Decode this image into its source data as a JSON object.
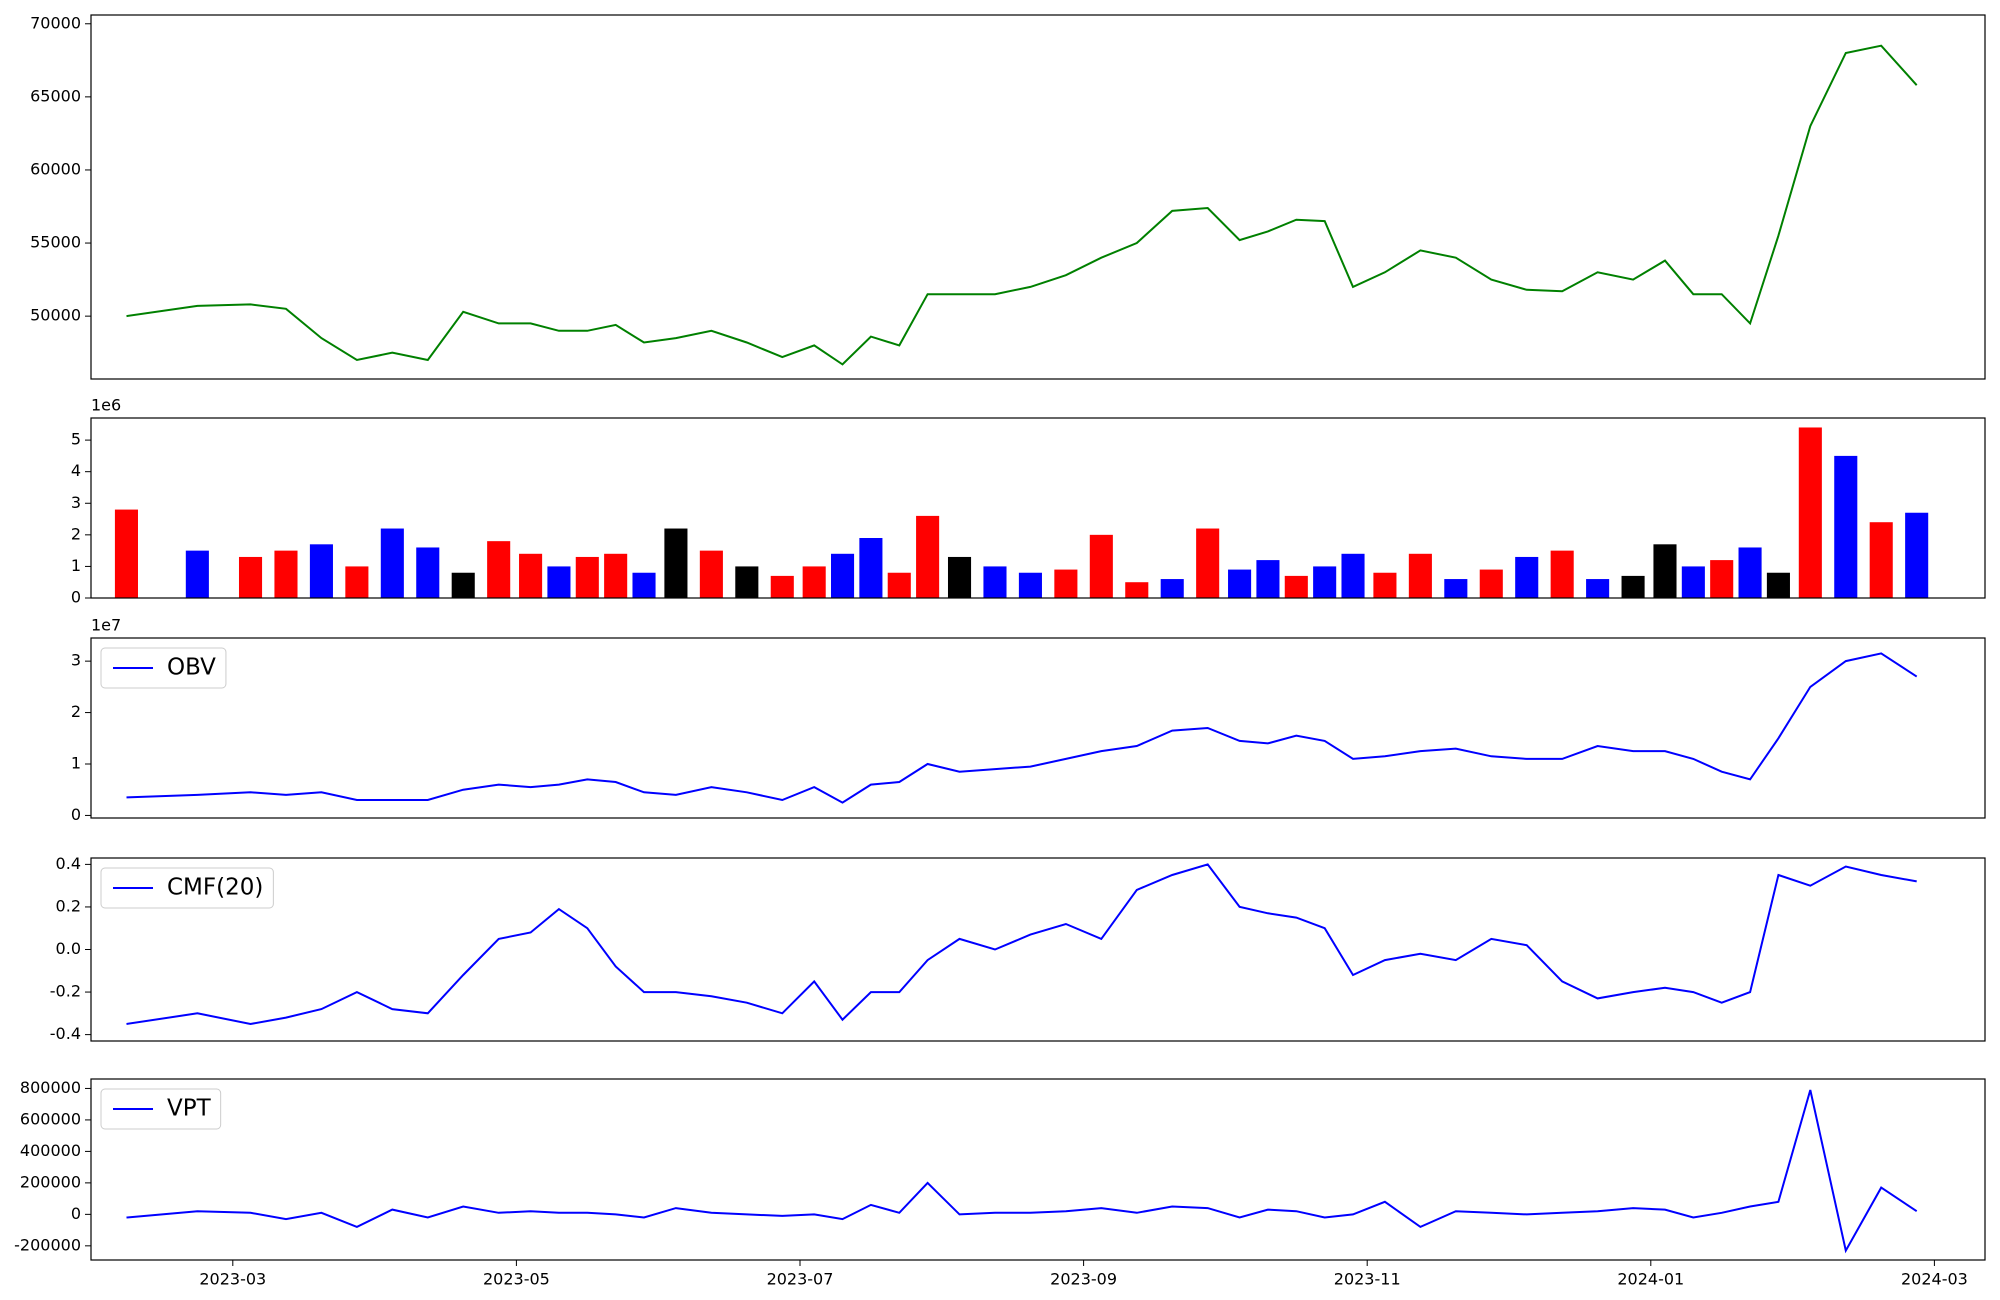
{
  "chart_data": [
    {
      "type": "line",
      "x": [
        "2023-02",
        "2023-02",
        "2023-03",
        "2023-03",
        "2023-03",
        "2023-03",
        "2023-04",
        "2023-04",
        "2023-04",
        "2023-04",
        "2023-05",
        "2023-05",
        "2023-05",
        "2023-05",
        "2023-05",
        "2023-06",
        "2023-06",
        "2023-06",
        "2023-06",
        "2023-07",
        "2023-07",
        "2023-07",
        "2023-07",
        "2023-07",
        "2023-08",
        "2023-08",
        "2023-08",
        "2023-08",
        "2023-09",
        "2023-09",
        "2023-09",
        "2023-09",
        "2023-10",
        "2023-10",
        "2023-10",
        "2023-10",
        "2023-10",
        "2023-11",
        "2023-11",
        "2023-11",
        "2023-11",
        "2023-12",
        "2023-12",
        "2023-12",
        "2023-12",
        "2024-01",
        "2024-01",
        "2024-01",
        "2024-01",
        "2024-01",
        "2024-02",
        "2024-02",
        "2024-02",
        "2024-02"
      ],
      "series": [
        {
          "color": "#008000",
          "values": [
            50000,
            50700,
            50800,
            50500,
            48500,
            47000,
            47500,
            47000,
            50300,
            49500,
            49500,
            49000,
            49000,
            49400,
            48200,
            48500,
            49000,
            48200,
            47200,
            48000,
            46700,
            48600,
            48000,
            51500,
            51500,
            51500,
            52000,
            52800,
            54000,
            55000,
            57200,
            57400,
            55200,
            55800,
            56600,
            56500,
            52000,
            53000,
            54500,
            54000,
            52500,
            51800,
            51700,
            53000,
            52500,
            53800,
            51500,
            51500,
            49500,
            55500,
            63000,
            68000,
            68500,
            65800
          ]
        }
      ],
      "ylim": [
        45700,
        70600
      ],
      "yticks": [
        50000,
        55000,
        60000,
        65000,
        70000
      ]
    },
    {
      "type": "bar",
      "x": [
        "2023-02",
        "2023-02",
        "2023-03",
        "2023-03",
        "2023-03",
        "2023-03",
        "2023-04",
        "2023-04",
        "2023-04",
        "2023-04",
        "2023-05",
        "2023-05",
        "2023-05",
        "2023-05",
        "2023-05",
        "2023-06",
        "2023-06",
        "2023-06",
        "2023-06",
        "2023-07",
        "2023-07",
        "2023-07",
        "2023-07",
        "2023-07",
        "2023-08",
        "2023-08",
        "2023-08",
        "2023-08",
        "2023-09",
        "2023-09",
        "2023-09",
        "2023-09",
        "2023-10",
        "2023-10",
        "2023-10",
        "2023-10",
        "2023-10",
        "2023-11",
        "2023-11",
        "2023-11",
        "2023-11",
        "2023-12",
        "2023-12",
        "2023-12",
        "2023-12",
        "2024-01",
        "2024-01",
        "2024-01",
        "2024-01",
        "2024-01",
        "2024-02",
        "2024-02",
        "2024-02",
        "2024-02"
      ],
      "values": [
        2.8,
        1.5,
        1.3,
        1.5,
        1.7,
        1.0,
        2.2,
        1.6,
        0.8,
        1.8,
        1.4,
        1.0,
        1.3,
        1.4,
        0.8,
        2.2,
        1.5,
        1.0,
        0.7,
        1.0,
        1.4,
        1.9,
        0.8,
        2.6,
        1.3,
        1.0,
        0.8,
        0.9,
        2.0,
        0.5,
        0.6,
        2.2,
        0.9,
        1.2,
        0.7,
        1.0,
        1.4,
        0.8,
        1.4,
        0.6,
        0.9,
        1.3,
        1.5,
        0.6,
        0.7,
        1.7,
        1.0,
        1.2,
        1.6,
        0.8,
        5.4,
        4.5,
        2.4,
        2.7
      ],
      "colors": [
        "red",
        "blue",
        "red",
        "red",
        "blue",
        "red",
        "blue",
        "blue",
        "black",
        "red",
        "red",
        "blue",
        "red",
        "red",
        "blue",
        "black",
        "red",
        "black",
        "red",
        "red",
        "blue",
        "blue",
        "red",
        "red",
        "black",
        "blue",
        "blue",
        "red",
        "red",
        "red",
        "blue",
        "red",
        "blue",
        "blue",
        "red",
        "blue",
        "blue",
        "red",
        "red",
        "blue",
        "red",
        "blue",
        "red",
        "blue",
        "black",
        "black",
        "blue",
        "red",
        "blue",
        "black",
        "red",
        "blue",
        "red",
        "blue"
      ],
      "ylim": [
        0,
        5.7
      ],
      "yticks": [
        0,
        1,
        2,
        3,
        4,
        5
      ],
      "offset_label": "1e6"
    },
    {
      "type": "line",
      "x": [
        "2023-02",
        "2023-02",
        "2023-03",
        "2023-03",
        "2023-03",
        "2023-03",
        "2023-04",
        "2023-04",
        "2023-04",
        "2023-04",
        "2023-05",
        "2023-05",
        "2023-05",
        "2023-05",
        "2023-05",
        "2023-06",
        "2023-06",
        "2023-06",
        "2023-06",
        "2023-07",
        "2023-07",
        "2023-07",
        "2023-07",
        "2023-07",
        "2023-08",
        "2023-08",
        "2023-08",
        "2023-08",
        "2023-09",
        "2023-09",
        "2023-09",
        "2023-09",
        "2023-10",
        "2023-10",
        "2023-10",
        "2023-10",
        "2023-10",
        "2023-11",
        "2023-11",
        "2023-11",
        "2023-11",
        "2023-12",
        "2023-12",
        "2023-12",
        "2023-12",
        "2024-01",
        "2024-01",
        "2024-01",
        "2024-01",
        "2024-01",
        "2024-02",
        "2024-02",
        "2024-02",
        "2024-02"
      ],
      "series": [
        {
          "name": "OBV",
          "color": "#0000ff",
          "values": [
            0.35,
            0.4,
            0.45,
            0.4,
            0.45,
            0.3,
            0.3,
            0.3,
            0.5,
            0.6,
            0.55,
            0.6,
            0.7,
            0.65,
            0.45,
            0.4,
            0.55,
            0.45,
            0.3,
            0.55,
            0.25,
            0.6,
            0.65,
            1.0,
            0.85,
            0.9,
            0.95,
            1.1,
            1.25,
            1.35,
            1.65,
            1.7,
            1.45,
            1.4,
            1.55,
            1.45,
            1.1,
            1.15,
            1.25,
            1.3,
            1.15,
            1.1,
            1.1,
            1.35,
            1.25,
            1.25,
            1.1,
            0.85,
            0.7,
            1.5,
            2.5,
            3.0,
            3.15,
            2.7
          ]
        }
      ],
      "ylim": [
        -0.05,
        3.45
      ],
      "yticks": [
        0,
        1,
        2,
        3
      ],
      "offset_label": "1e7",
      "legend": "upper left"
    },
    {
      "type": "line",
      "x": [
        "2023-02",
        "2023-02",
        "2023-03",
        "2023-03",
        "2023-03",
        "2023-03",
        "2023-04",
        "2023-04",
        "2023-04",
        "2023-04",
        "2023-05",
        "2023-05",
        "2023-05",
        "2023-05",
        "2023-05",
        "2023-06",
        "2023-06",
        "2023-06",
        "2023-06",
        "2023-07",
        "2023-07",
        "2023-07",
        "2023-07",
        "2023-07",
        "2023-08",
        "2023-08",
        "2023-08",
        "2023-08",
        "2023-09",
        "2023-09",
        "2023-09",
        "2023-09",
        "2023-10",
        "2023-10",
        "2023-10",
        "2023-10",
        "2023-10",
        "2023-11",
        "2023-11",
        "2023-11",
        "2023-11",
        "2023-12",
        "2023-12",
        "2023-12",
        "2023-12",
        "2024-01",
        "2024-01",
        "2024-01",
        "2024-01",
        "2024-01",
        "2024-02",
        "2024-02",
        "2024-02",
        "2024-02"
      ],
      "series": [
        {
          "name": "CMF(20)",
          "color": "#0000ff",
          "values": [
            -0.35,
            -0.3,
            -0.35,
            -0.32,
            -0.28,
            -0.2,
            -0.28,
            -0.3,
            -0.12,
            0.05,
            0.08,
            0.19,
            0.1,
            -0.08,
            -0.2,
            -0.2,
            -0.22,
            -0.25,
            -0.3,
            -0.15,
            -0.33,
            -0.2,
            -0.2,
            -0.05,
            0.05,
            0.0,
            0.07,
            0.12,
            0.05,
            0.28,
            0.35,
            0.4,
            0.2,
            0.17,
            0.15,
            0.1,
            -0.12,
            -0.05,
            -0.02,
            -0.05,
            0.05,
            0.02,
            -0.15,
            -0.23,
            -0.2,
            -0.18,
            -0.2,
            -0.25,
            -0.2,
            0.35,
            0.3,
            0.39,
            0.35,
            0.32
          ]
        }
      ],
      "ylim": [
        -0.43,
        0.43
      ],
      "yticks": [
        -0.4,
        -0.2,
        {
          "value": 0,
          "label": "0.0"
        },
        0.2,
        0.4
      ],
      "legend": "upper left"
    },
    {
      "type": "line",
      "x": [
        "2023-02",
        "2023-02",
        "2023-03",
        "2023-03",
        "2023-03",
        "2023-03",
        "2023-04",
        "2023-04",
        "2023-04",
        "2023-04",
        "2023-05",
        "2023-05",
        "2023-05",
        "2023-05",
        "2023-05",
        "2023-06",
        "2023-06",
        "2023-06",
        "2023-06",
        "2023-07",
        "2023-07",
        "2023-07",
        "2023-07",
        "2023-07",
        "2023-08",
        "2023-08",
        "2023-08",
        "2023-08",
        "2023-09",
        "2023-09",
        "2023-09",
        "2023-09",
        "2023-10",
        "2023-10",
        "2023-10",
        "2023-10",
        "2023-10",
        "2023-11",
        "2023-11",
        "2023-11",
        "2023-11",
        "2023-12",
        "2023-12",
        "2023-12",
        "2023-12",
        "2024-01",
        "2024-01",
        "2024-01",
        "2024-01",
        "2024-01",
        "2024-02",
        "2024-02",
        "2024-02",
        "2024-02"
      ],
      "series": [
        {
          "name": "VPT",
          "color": "#0000ff",
          "values": [
            -20000,
            20000,
            10000,
            -30000,
            10000,
            -80000,
            30000,
            -20000,
            50000,
            10000,
            20000,
            10000,
            10000,
            0,
            -20000,
            40000,
            10000,
            0,
            -10000,
            0,
            -30000,
            60000,
            10000,
            200000,
            0,
            10000,
            10000,
            20000,
            40000,
            10000,
            50000,
            40000,
            -20000,
            30000,
            20000,
            -20000,
            0,
            80000,
            -80000,
            20000,
            10000,
            0,
            10000,
            20000,
            40000,
            30000,
            -20000,
            10000,
            50000,
            80000,
            790000,
            -230000,
            170000,
            20000
          ]
        }
      ],
      "ylim": [
        -290000,
        860000
      ],
      "yticks": [
        -200000,
        0,
        200000,
        400000,
        600000,
        800000
      ],
      "legend": "upper left",
      "xticks": [
        "2023-03",
        "2023-05",
        "2023-07",
        "2023-09",
        "2023-11",
        "2024-01",
        "2024-03"
      ]
    }
  ]
}
